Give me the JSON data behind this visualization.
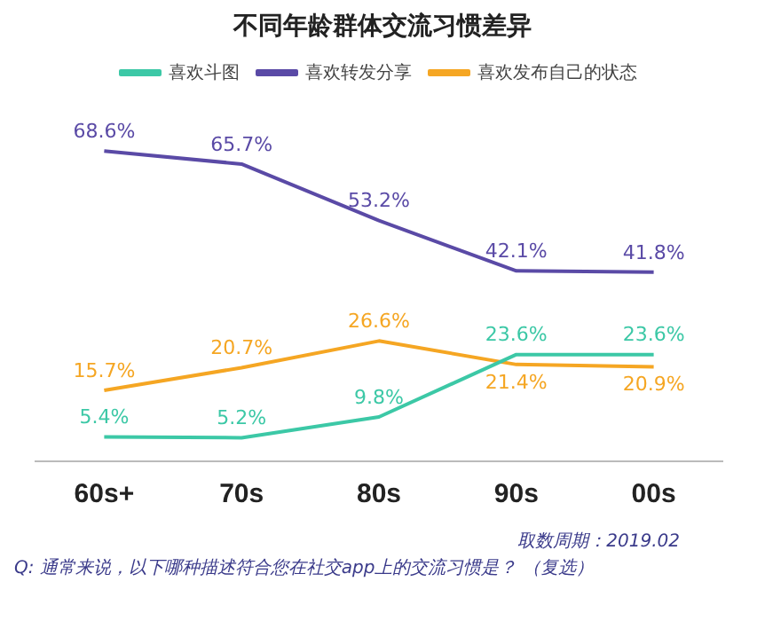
{
  "chart_data": {
    "type": "line",
    "title": "不同年龄群体交流习惯差异",
    "categories": [
      "60s+",
      "70s",
      "80s",
      "90s",
      "00s"
    ],
    "tick_labels": "x",
    "series": [
      {
        "name": "喜欢斗图",
        "color": "#3cc8a6",
        "values": [
          5.4,
          5.2,
          9.8,
          23.6,
          23.6
        ],
        "value_labels": [
          "5.4%",
          "5.2%",
          "9.8%",
          "23.6%",
          "23.6%"
        ]
      },
      {
        "name": "喜欢转发分享",
        "color": "#5a4aa6",
        "values": [
          68.6,
          65.7,
          53.2,
          42.1,
          41.8
        ],
        "value_labels": [
          "68.6%",
          "65.7%",
          "53.2%",
          "42.1%",
          "41.8%"
        ]
      },
      {
        "name": "喜欢发布自己的状态",
        "color": "#f5a623",
        "values": [
          15.7,
          20.7,
          26.6,
          21.4,
          20.9
        ],
        "value_labels": [
          "15.7%",
          "20.7%",
          "26.6%",
          "21.4%",
          "20.9%"
        ]
      }
    ],
    "legend": "top",
    "grid": false,
    "marker": "none",
    "line_style": "solid",
    "annotations": [
      "取数周期：2019.02",
      "Q: 通常来说，以下哪种描述符合您在社交app上的交流习惯是？ （复选）"
    ]
  }
}
